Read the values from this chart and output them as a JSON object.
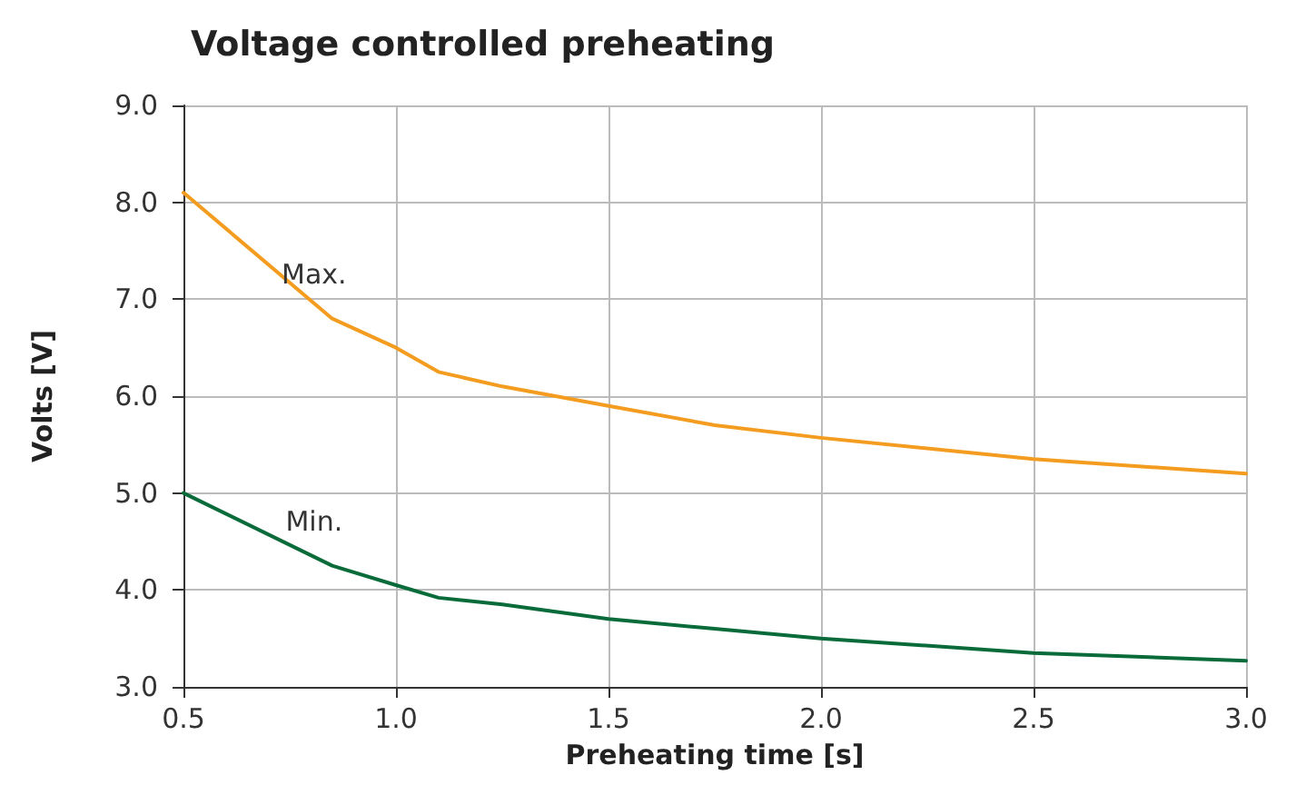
{
  "chart_data": {
    "type": "line",
    "title": "Voltage controlled preheating",
    "xlabel": "Preheating time [s]",
    "ylabel": "Volts [V]",
    "x": [
      0.5,
      0.85,
      1.0,
      1.1,
      1.25,
      1.5,
      1.75,
      2.0,
      2.5,
      3.0
    ],
    "series": [
      {
        "name": "Max.",
        "color": "#f39c1f",
        "values": [
          8.1,
          6.8,
          6.5,
          6.25,
          6.1,
          5.9,
          5.7,
          5.57,
          5.35,
          5.2
        ]
      },
      {
        "name": "Min.",
        "color": "#0a6b3a",
        "values": [
          5.0,
          4.25,
          4.05,
          3.92,
          3.85,
          3.7,
          3.6,
          3.5,
          3.35,
          3.27
        ]
      }
    ],
    "xlim": [
      0.5,
      3.0
    ],
    "xticks": [
      {
        "value": 0.5,
        "label": "0.5"
      },
      {
        "value": 1,
        "label": "1.0"
      },
      {
        "value": 1.5,
        "label": "1.5"
      },
      {
        "value": 2,
        "label": "2.0"
      },
      {
        "value": 2.5,
        "label": "2.5"
      },
      {
        "value": 3,
        "label": "3.0"
      }
    ],
    "ylim": [
      3,
      9
    ],
    "yticks": [
      {
        "value": 3,
        "label": "3.0"
      },
      {
        "value": 4,
        "label": "4.0"
      },
      {
        "value": 5,
        "label": "5.0"
      },
      {
        "value": 6,
        "label": "6.0"
      },
      {
        "value": 7,
        "label": "7.0"
      },
      {
        "value": 8,
        "label": "8.0"
      },
      {
        "value": 9,
        "label": "9.0"
      }
    ],
    "grid": true,
    "legend": false,
    "marker": "none",
    "line_style": "solid"
  }
}
